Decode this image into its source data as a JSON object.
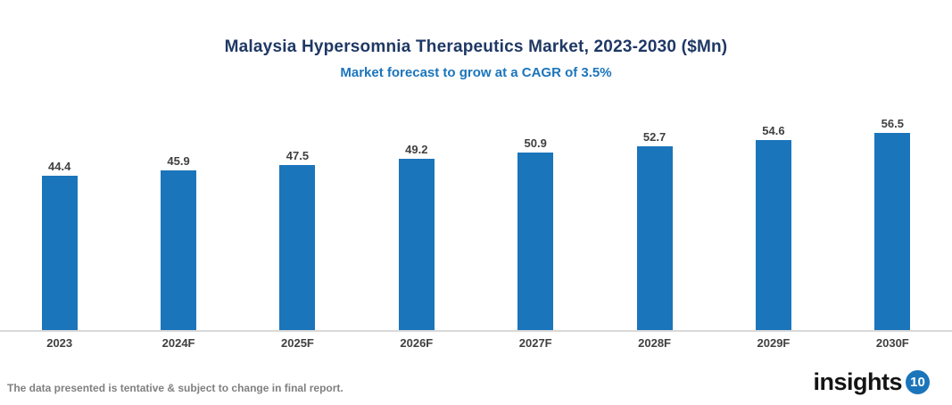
{
  "header": {
    "title": "Malaysia Hypersomnia Therapeutics Market, 2023-2030 ($Mn)",
    "subtitle": "Market forecast to grow at a CAGR of 3.5%"
  },
  "chart_data": {
    "type": "bar",
    "title": "Malaysia Hypersomnia Therapeutics Market, 2023-2030 ($Mn)",
    "subtitle": "Market forecast to grow at a CAGR of 3.5%",
    "categories": [
      "2023",
      "2024F",
      "2025F",
      "2026F",
      "2027F",
      "2028F",
      "2029F",
      "2030F"
    ],
    "values": [
      44.4,
      45.9,
      47.5,
      49.2,
      50.9,
      52.7,
      54.6,
      56.5
    ],
    "xlabel": "",
    "ylabel": "",
    "ylim": [
      0,
      63
    ],
    "grid": false,
    "legend": false,
    "value_labels_shown": true,
    "bar_color": "#1B75BB"
  },
  "footer": {
    "disclaimer": "The data presented is tentative & subject to change in final report.",
    "logo_text": "insights",
    "logo_badge": "10"
  },
  "colors": {
    "title": "#1F3864",
    "subtitle": "#1B75BC",
    "bar": "#1B75BB",
    "axis_line": "#D9D9D9",
    "label": "#404040",
    "footer_text": "#808080",
    "logo_badge_bg": "#1B75BB"
  }
}
